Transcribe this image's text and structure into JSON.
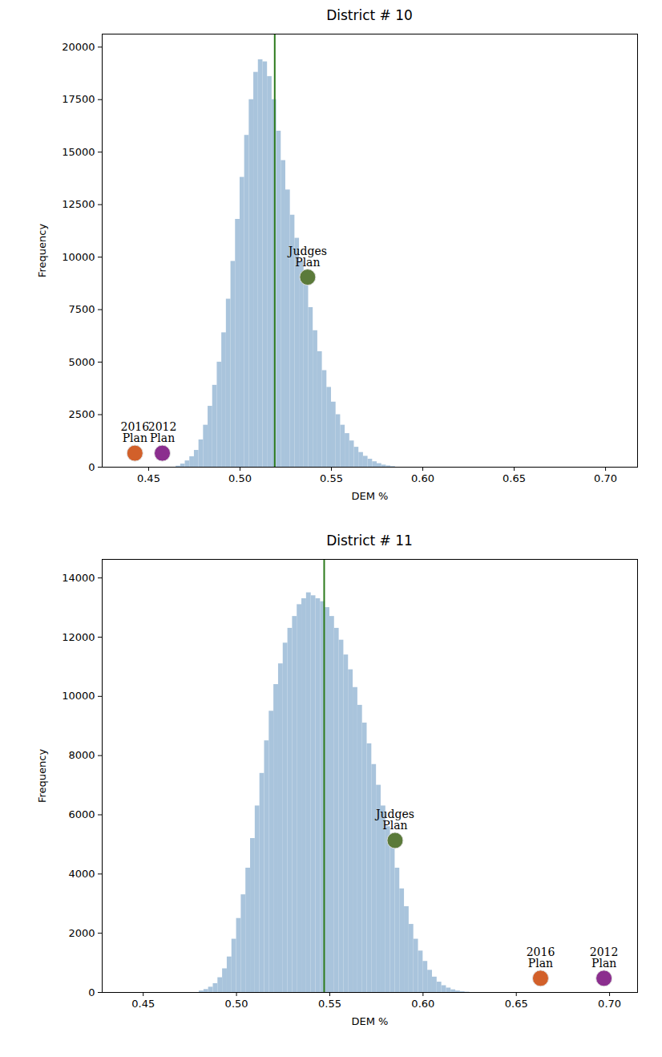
{
  "chart_data": [
    {
      "type": "histogram",
      "title": "District # 10",
      "x_label": "DEM %",
      "y_label": "Frequency",
      "color": "#a9c4dc",
      "bins": [
        0.465,
        0.4675,
        0.47,
        0.4725,
        0.475,
        0.4775,
        0.48,
        0.4825,
        0.485,
        0.4875,
        0.49,
        0.4925,
        0.495,
        0.4975,
        0.5,
        0.5025,
        0.505,
        0.5075,
        0.51,
        0.5125,
        0.515,
        0.5175,
        0.52,
        0.5225,
        0.525,
        0.5275,
        0.53,
        0.5325,
        0.535,
        0.5375,
        0.54,
        0.5425,
        0.545,
        0.5475,
        0.55,
        0.5525,
        0.555,
        0.5575,
        0.56,
        0.5625,
        0.565,
        0.5675,
        0.57,
        0.5725,
        0.575,
        0.5775,
        0.58,
        0.5825,
        0.585
      ],
      "counts": [
        50,
        150,
        300,
        500,
        800,
        1300,
        2000,
        2900,
        3900,
        5000,
        6400,
        8000,
        9800,
        11800,
        13800,
        15800,
        17500,
        18800,
        19400,
        19300,
        18600,
        17500,
        16000,
        14600,
        13200,
        12000,
        10900,
        9800,
        8700,
        7600,
        6500,
        5500,
        4600,
        3800,
        3100,
        2500,
        2000,
        1600,
        1250,
        950,
        700,
        520,
        380,
        260,
        170,
        100,
        60,
        30
      ],
      "vline": {
        "x": 0.519,
        "color": "#2c7a1c"
      },
      "annotations": [
        {
          "text": "2016\nPlan",
          "x": 0.4425,
          "y": 664,
          "color": "#d2602a"
        },
        {
          "text": "2012\nPlan",
          "x": 0.4575,
          "y": 664,
          "color": "#8b2e8e"
        },
        {
          "text": "Judges\nPlan",
          "x": 0.537,
          "y": 9046,
          "color": "#5b7a3a"
        }
      ],
      "xlim": [
        0.4246,
        0.7175
      ],
      "xticks": [
        0.45,
        {
          "value": 0.5,
          "label": "0.50"
        },
        0.55,
        {
          "value": 0.6,
          "label": "0.60"
        },
        0.65,
        {
          "value": 0.7,
          "label": "0.70"
        }
      ],
      "ylim": [
        0,
        20620
      ],
      "yticks": [
        0,
        2500,
        5000,
        7500,
        10000,
        12500,
        15000,
        17500,
        20000
      ],
      "grid": false
    },
    {
      "type": "histogram",
      "title": "District # 11",
      "x_label": "DEM %",
      "y_label": "Frequency",
      "color": "#a9c4dc",
      "bins": [
        0.48,
        0.4825,
        0.485,
        0.4875,
        0.49,
        0.4925,
        0.495,
        0.4975,
        0.5,
        0.5025,
        0.505,
        0.5075,
        0.51,
        0.5125,
        0.515,
        0.5175,
        0.52,
        0.5225,
        0.525,
        0.5275,
        0.53,
        0.5325,
        0.535,
        0.5375,
        0.54,
        0.5425,
        0.545,
        0.5475,
        0.55,
        0.5525,
        0.555,
        0.5575,
        0.56,
        0.5625,
        0.565,
        0.5675,
        0.57,
        0.5725,
        0.575,
        0.5775,
        0.58,
        0.5825,
        0.585,
        0.5875,
        0.59,
        0.5925,
        0.595,
        0.5975,
        0.6,
        0.6025,
        0.605,
        0.6075,
        0.61,
        0.6125,
        0.615,
        0.6175,
        0.62,
        0.6225,
        0.625
      ],
      "counts": [
        50,
        100,
        180,
        300,
        500,
        800,
        1200,
        1800,
        2500,
        3300,
        4200,
        5200,
        6300,
        7400,
        8500,
        9500,
        10400,
        11100,
        11800,
        12300,
        12700,
        13100,
        13300,
        13500,
        13400,
        13300,
        13200,
        13000,
        12700,
        12300,
        11900,
        11400,
        10900,
        10300,
        9700,
        9100,
        8400,
        7700,
        7000,
        6300,
        5600,
        4900,
        4200,
        3500,
        2900,
        2300,
        1800,
        1400,
        1050,
        750,
        520,
        350,
        230,
        150,
        90,
        50,
        25,
        10
      ],
      "vline": {
        "x": 0.547,
        "color": "#2c7a1c"
      },
      "annotations": [
        {
          "text": "Judges\nPlan",
          "x": 0.585,
          "y": 5134,
          "color": "#5b7a3a"
        },
        {
          "text": "2016\nPlan",
          "x": 0.663,
          "y": 478,
          "color": "#d2602a"
        },
        {
          "text": "2012\nPlan",
          "x": 0.697,
          "y": 478,
          "color": "#8b2e8e"
        }
      ],
      "xlim": [
        0.428,
        0.715
      ],
      "xticks": [
        0.45,
        {
          "value": 0.5,
          "label": "0.50"
        },
        0.55,
        {
          "value": 0.6,
          "label": "0.60"
        },
        0.65,
        {
          "value": 0.7,
          "label": "0.70"
        }
      ],
      "ylim": [
        0,
        14627
      ],
      "yticks": [
        0,
        2000,
        4000,
        6000,
        8000,
        10000,
        12000,
        14000
      ],
      "grid": false
    }
  ]
}
